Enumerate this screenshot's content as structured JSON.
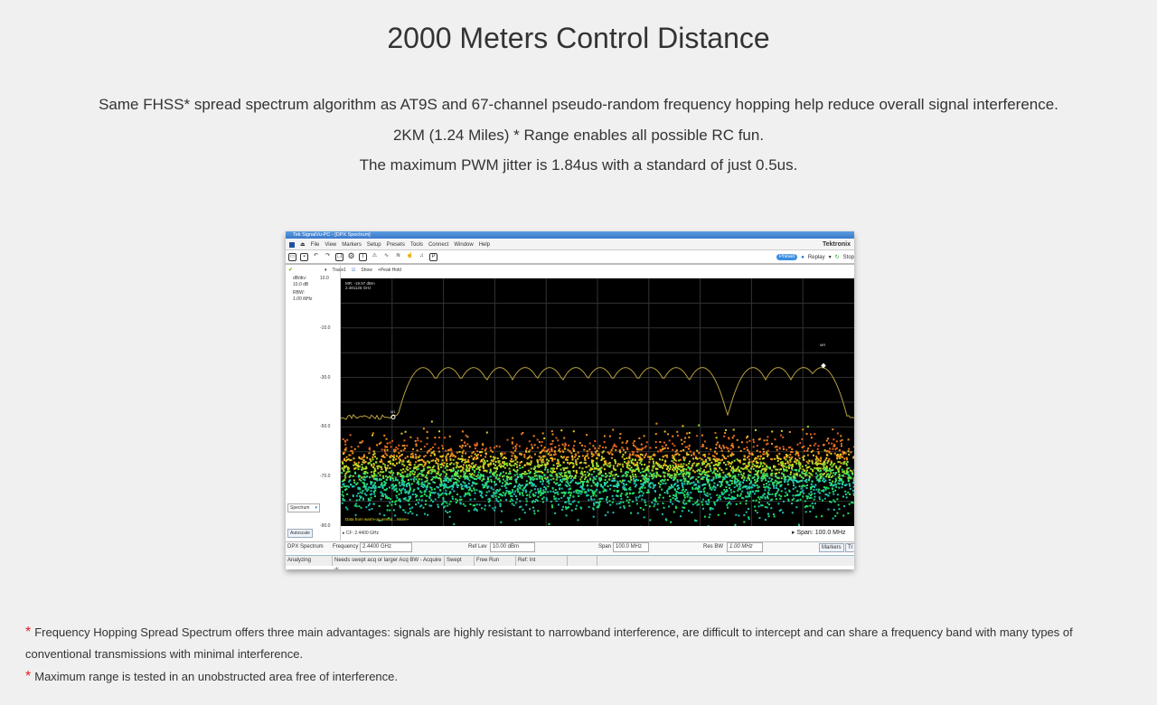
{
  "title": "2000 Meters Control Distance",
  "paragraphs": [
    "Same FHSS* spread spectrum algorithm as AT9S and 67-channel pseudo-random frequency hopping help reduce overall signal interference.",
    "2KM (1.24 Miles) * Range enables all possible RC fun.",
    "The maximum PWM jitter is 1.84us with a standard of just 0.5us."
  ],
  "screenshot": {
    "window_title": "Tek SignalVu-PC - [DPX Spectrum]",
    "menu": [
      "File",
      "View",
      "Markers",
      "Setup",
      "Presets",
      "Tools",
      "Connect",
      "Window",
      "Help"
    ],
    "brand": "Tektronix",
    "toolbar_icons": [
      "open-icon",
      "save-icon",
      "undo-icon",
      "redo-icon",
      "windows-icon",
      "gear-icon",
      "shield-icon",
      "alarm-icon",
      "trace-icon",
      "spectrum-icon",
      "hand-icon",
      "speaker-icon",
      "present-icon"
    ],
    "preset": "Preset",
    "replay": "Replay",
    "stop": "Stop",
    "trace": {
      "name": "Trace1",
      "show": "Show",
      "mode": "+Peak Hold"
    },
    "left_panel": {
      "dbdiv_label": "dB/div:",
      "dbdiv": "10.0 dB",
      "rbw_label": "RBW:",
      "rbw": "1.00 MHz",
      "view_select": "Spectrum",
      "autoscale": "Autoscale"
    },
    "marker_readout": [
      "MR: -19.97 dBm",
      "2.481126 GHz"
    ],
    "markers": [
      "M1",
      "MR"
    ],
    "warmup": "Data from warm-up period... More»",
    "cf": "CF: 2.4400 GHz",
    "span_readout": "Span: 100.0 MHz",
    "controls": {
      "mode": "DPX Spectrum",
      "freq_label": "Frequency",
      "freq": "2.4400 GHz",
      "reflev_label": "Ref Lev",
      "reflev": "10.00 dBm",
      "span_label": "Span",
      "span": "100.0 MHz",
      "resbw_label": "Res BW",
      "resbw": "1.00 MHz",
      "markers_btn": "Markers",
      "trace_btn": "Tr"
    },
    "status": [
      "Analyzing",
      "Needs swept acq or larger Acq BW - Acquire di",
      "Swept",
      "Free Run",
      "Ref: Int",
      ""
    ],
    "chart_data": {
      "type": "line",
      "yticks": [
        "10.0",
        "-10.0",
        "-30.0",
        "-50.0",
        "-70.0",
        "-90.0"
      ],
      "ylim": [
        -90,
        10
      ],
      "unit": "dBm",
      "grid": true,
      "peak_hold_color": "#b8a040"
    }
  },
  "footnotes": [
    "Frequency Hopping Spread Spectrum offers three main advantages: signals are highly resistant to narrowband interference, are difficult to intercept and can share a frequency band with many types of conventional transmissions with minimal interference.",
    "Maximum range is tested in an unobstructed area free of interference."
  ],
  "footnote_mark": "*"
}
